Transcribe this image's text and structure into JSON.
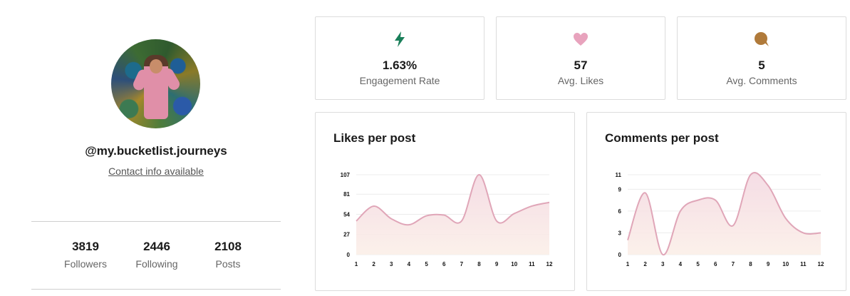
{
  "profile": {
    "username": "@my.bucketlist.journeys",
    "contact_label": "Contact info available",
    "stats": [
      {
        "value": "3819",
        "label": "Followers"
      },
      {
        "value": "2446",
        "label": "Following"
      },
      {
        "value": "2108",
        "label": "Posts"
      }
    ]
  },
  "metrics": [
    {
      "icon": "lightning-icon",
      "color": "#1a7f5a",
      "value": "1.63%",
      "label": "Engagement Rate"
    },
    {
      "icon": "heart-icon",
      "color": "#e8a3bd",
      "value": "57",
      "label": "Avg. Likes"
    },
    {
      "icon": "comment-icon",
      "color": "#b07a3a",
      "value": "5",
      "label": "Avg. Comments"
    }
  ],
  "colors": {
    "line": "#e0a6b8",
    "fill_top": "#f4d9e2",
    "fill_bottom": "#fbefe8"
  },
  "chart_data": [
    {
      "type": "area",
      "title": "Likes per post",
      "x": [
        1,
        2,
        3,
        4,
        5,
        6,
        7,
        8,
        9,
        10,
        11,
        12
      ],
      "y_ticks": [
        "0",
        "27",
        "54",
        "81",
        "107"
      ],
      "ylim": [
        0,
        107
      ],
      "values": [
        45,
        65,
        48,
        40,
        52,
        53,
        45,
        107,
        45,
        55,
        65,
        70
      ],
      "grid": true
    },
    {
      "type": "area",
      "title": "Comments per post",
      "x": [
        1,
        2,
        3,
        4,
        5,
        6,
        7,
        8,
        9,
        10,
        11,
        12
      ],
      "y_ticks": [
        "0",
        "3",
        "6",
        "9",
        "11"
      ],
      "ylim": [
        0,
        11
      ],
      "values": [
        2,
        8.5,
        0,
        6,
        7.5,
        7.5,
        4,
        11,
        9.5,
        5,
        3,
        3
      ],
      "grid": true
    }
  ]
}
